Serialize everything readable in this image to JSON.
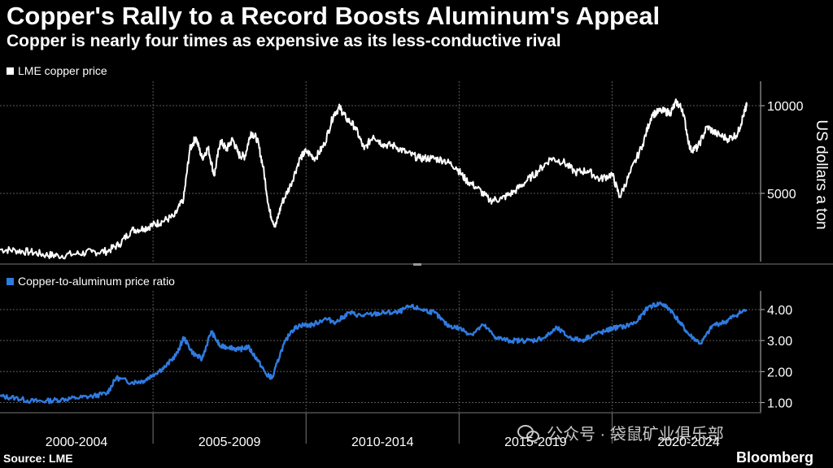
{
  "header": {
    "title": "Copper's Rally to a Record Boosts Aluminum's Appeal",
    "subtitle": "Copper is nearly four times as expensive as its less-conductive rival"
  },
  "footer": {
    "source": "Source: LME",
    "brand": "Bloomberg"
  },
  "watermark": {
    "text": "公众号 · 袋鼠矿业俱乐部",
    "icon": "wechat-icon"
  },
  "colors": {
    "copper": "#ffffff",
    "ratio": "#2f7be0",
    "background": "#000000",
    "grid": "#666666"
  },
  "chart_data": [
    {
      "type": "line",
      "legend": "LME copper price",
      "ylabel": "US dollars a ton",
      "x_tick_labels": [
        "2000-2004",
        "2005-2009",
        "2010-2014",
        "2015-2019",
        "2020-2024"
      ],
      "x_range": [
        2000.0,
        2024.4
      ],
      "ylim": [
        1200,
        11300
      ],
      "y_ticks": [
        5000,
        10000
      ],
      "y_tick_labels": [
        "5000",
        "10000"
      ],
      "grid": "dotted",
      "series": [
        {
          "name": "LME copper price",
          "x": [
            2000.0,
            2000.5,
            2001.0,
            2001.5,
            2001.9,
            2002.5,
            2003.0,
            2003.5,
            2003.9,
            2004.3,
            2004.7,
            2005.0,
            2005.3,
            2005.7,
            2006.0,
            2006.2,
            2006.4,
            2006.6,
            2006.8,
            2007.0,
            2007.2,
            2007.4,
            2007.6,
            2007.8,
            2008.0,
            2008.2,
            2008.4,
            2008.6,
            2008.8,
            2009.0,
            2009.2,
            2009.5,
            2009.8,
            2010.0,
            2010.3,
            2010.6,
            2010.9,
            2011.1,
            2011.3,
            2011.6,
            2011.9,
            2012.2,
            2012.5,
            2012.9,
            2013.3,
            2013.7,
            2014.1,
            2014.5,
            2014.9,
            2015.2,
            2015.6,
            2016.0,
            2016.4,
            2016.8,
            2017.2,
            2017.6,
            2018.0,
            2018.4,
            2018.8,
            2019.2,
            2019.6,
            2020.0,
            2020.25,
            2020.6,
            2021.0,
            2021.3,
            2021.6,
            2021.9,
            2022.1,
            2022.3,
            2022.55,
            2022.8,
            2023.1,
            2023.4,
            2023.8,
            2024.1,
            2024.3,
            2024.4
          ],
          "y": [
            1800,
            1750,
            1650,
            1500,
            1450,
            1550,
            1650,
            1700,
            2100,
            2900,
            3000,
            3200,
            3400,
            3700,
            4700,
            7500,
            8200,
            7000,
            7600,
            6000,
            8000,
            7500,
            8100,
            7200,
            7100,
            8500,
            8100,
            6500,
            4000,
            3100,
            4400,
            5500,
            7000,
            7400,
            7000,
            7800,
            9500,
            9900,
            9300,
            8800,
            7500,
            8300,
            7800,
            7700,
            7300,
            7000,
            7000,
            6900,
            6500,
            5800,
            5300,
            4600,
            4700,
            5100,
            5700,
            6300,
            7000,
            6800,
            6200,
            6300,
            5800,
            6100,
            4800,
            6200,
            7800,
            9500,
            9700,
            9600,
            10200,
            9800,
            7500,
            7600,
            8800,
            8400,
            8100,
            8400,
            9500,
            10000
          ]
        }
      ]
    },
    {
      "type": "line",
      "legend": "Copper-to-aluminum price ratio",
      "x_tick_labels": [
        "2000-2004",
        "2005-2009",
        "2010-2014",
        "2015-2019",
        "2020-2024"
      ],
      "x_range": [
        2000.0,
        2024.4
      ],
      "ylim": [
        0.75,
        4.55
      ],
      "y_ticks": [
        1.0,
        2.0,
        3.0,
        4.0
      ],
      "y_tick_labels": [
        "1.00",
        "2.00",
        "3.00",
        "4.00"
      ],
      "grid": "dotted",
      "series": [
        {
          "name": "Copper-to-aluminum price ratio",
          "x": [
            2000.0,
            2000.5,
            2001.0,
            2001.5,
            2002.0,
            2002.5,
            2003.0,
            2003.5,
            2003.8,
            2004.3,
            2004.7,
            2005.0,
            2005.4,
            2005.8,
            2006.0,
            2006.3,
            2006.6,
            2006.9,
            2007.2,
            2007.5,
            2007.8,
            2008.1,
            2008.4,
            2008.7,
            2008.9,
            2009.2,
            2009.5,
            2009.8,
            2010.2,
            2010.6,
            2011.0,
            2011.4,
            2011.8,
            2012.2,
            2012.6,
            2013.0,
            2013.4,
            2013.8,
            2014.2,
            2014.6,
            2015.0,
            2015.4,
            2015.8,
            2016.2,
            2016.6,
            2017.0,
            2017.4,
            2017.8,
            2018.2,
            2018.6,
            2019.0,
            2019.4,
            2019.8,
            2020.0,
            2020.4,
            2020.8,
            2021.2,
            2021.6,
            2021.9,
            2022.2,
            2022.5,
            2022.9,
            2023.3,
            2023.7,
            2024.0,
            2024.4
          ],
          "y": [
            1.2,
            1.15,
            1.05,
            1.05,
            1.1,
            1.15,
            1.2,
            1.3,
            1.8,
            1.65,
            1.7,
            1.9,
            2.15,
            2.6,
            3.1,
            2.6,
            2.4,
            3.3,
            2.8,
            2.8,
            2.7,
            2.8,
            2.4,
            1.9,
            1.8,
            2.7,
            3.3,
            3.5,
            3.5,
            3.7,
            3.6,
            3.9,
            3.8,
            3.85,
            3.9,
            3.9,
            4.1,
            4.0,
            3.9,
            3.5,
            3.4,
            3.2,
            3.5,
            3.1,
            3.0,
            3.0,
            3.0,
            3.1,
            3.4,
            3.1,
            3.0,
            3.2,
            3.3,
            3.4,
            3.45,
            3.6,
            4.1,
            4.2,
            4.0,
            3.6,
            3.2,
            2.9,
            3.5,
            3.6,
            3.8,
            4.0
          ]
        }
      ]
    }
  ]
}
